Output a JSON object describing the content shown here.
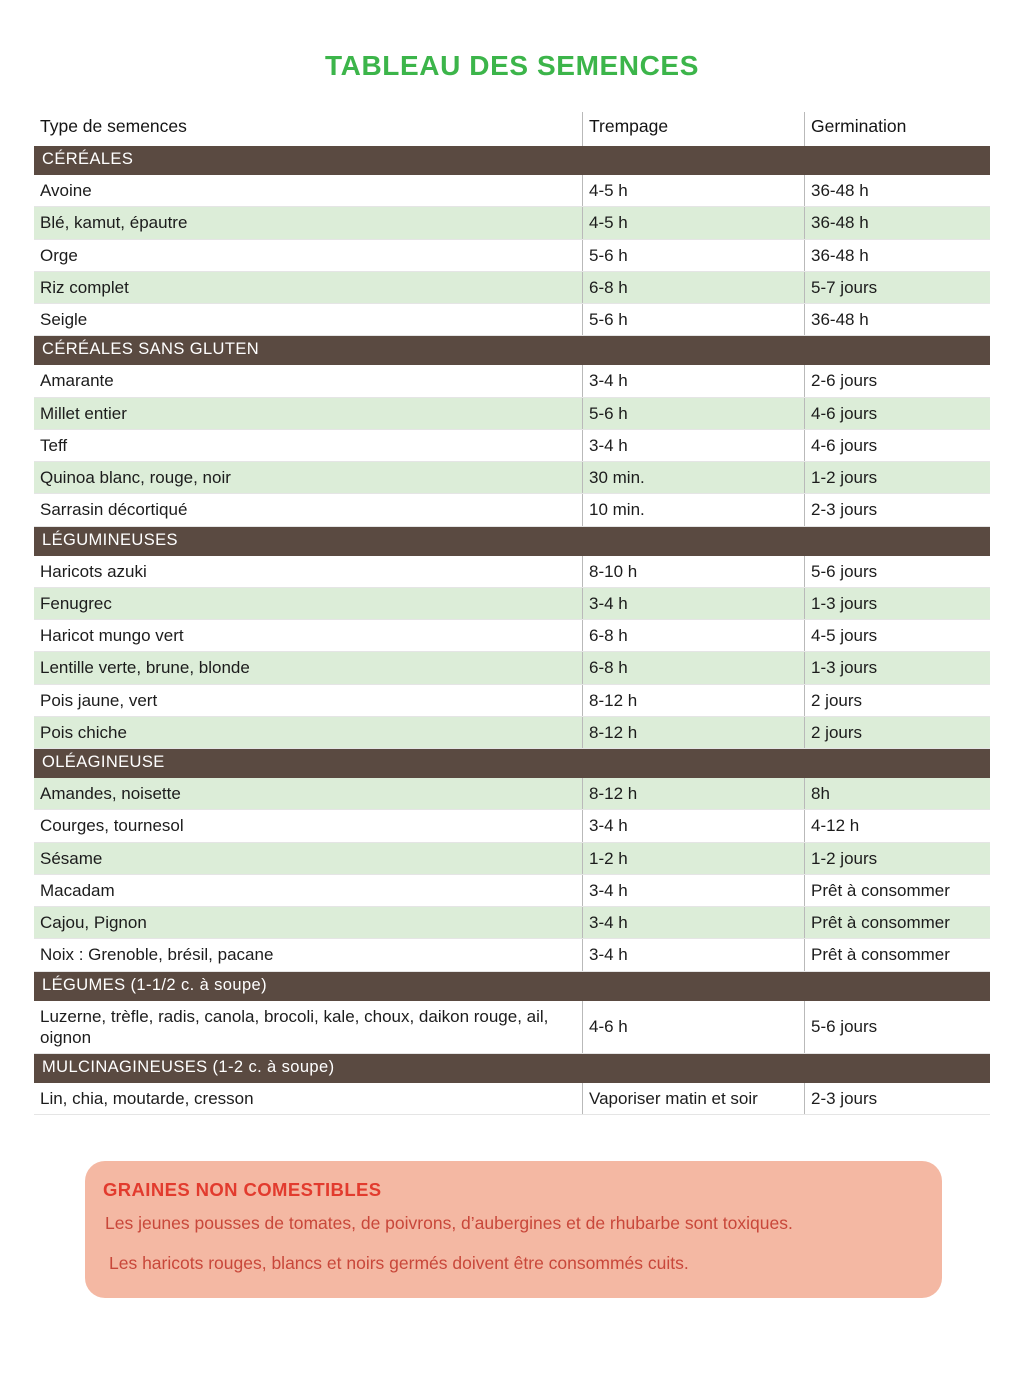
{
  "title": "TABLEAU DES SEMENCES",
  "table": {
    "headers": [
      "Type de semences",
      "Trempage",
      "Germination"
    ],
    "sections": [
      {
        "label": "CÉRÉALES",
        "first_row_green": false,
        "rows": [
          [
            "Avoine",
            "4-5 h",
            "36-48 h"
          ],
          [
            "Blé, kamut, épautre",
            "4-5 h",
            "36-48 h"
          ],
          [
            "Orge",
            "5-6 h",
            "36-48 h"
          ],
          [
            "Riz complet",
            "6-8 h",
            "5-7 jours"
          ],
          [
            "Seigle",
            "5-6 h",
            "36-48 h"
          ]
        ]
      },
      {
        "label": "CÉRÉALES SANS GLUTEN",
        "first_row_green": false,
        "rows": [
          [
            "Amarante",
            "3-4 h",
            "2-6 jours"
          ],
          [
            "Millet entier",
            "5-6 h",
            "4-6 jours"
          ],
          [
            "Teff",
            "3-4 h",
            "4-6 jours"
          ],
          [
            "Quinoa blanc, rouge, noir",
            "30 min.",
            "1-2 jours"
          ],
          [
            "Sarrasin décortiqué",
            "10 min.",
            "2-3 jours"
          ]
        ]
      },
      {
        "label": "LÉGUMINEUSES",
        "first_row_green": false,
        "rows": [
          [
            "Haricots azuki",
            "8-10 h",
            "5-6 jours"
          ],
          [
            "Fenugrec",
            "3-4 h",
            "1-3 jours"
          ],
          [
            "Haricot mungo vert",
            "6-8 h",
            "4-5 jours"
          ],
          [
            "Lentille verte, brune, blonde",
            "6-8 h",
            "1-3 jours"
          ],
          [
            "Pois jaune, vert",
            "8-12 h",
            "2 jours"
          ],
          [
            "Pois chiche",
            "8-12 h",
            "2 jours"
          ]
        ]
      },
      {
        "label": "OLÉAGINEUSE",
        "first_row_green": true,
        "rows": [
          [
            "Amandes, noisette",
            "8-12 h",
            "8h"
          ],
          [
            "Courges, tournesol",
            "3-4 h",
            "4-12 h"
          ],
          [
            "Sésame",
            "1-2 h",
            "1-2 jours"
          ],
          [
            "Macadam",
            "3-4 h",
            "Prêt à consommer"
          ],
          [
            "Cajou, Pignon",
            "3-4 h",
            "Prêt à consommer"
          ],
          [
            "Noix : Grenoble, brésil, pacane",
            "3-4 h",
            "Prêt à consommer"
          ]
        ]
      },
      {
        "label": "LÉGUMES (1-1/2 c. à soupe)",
        "first_row_green": false,
        "rows": [
          [
            "Luzerne, trèfle, radis, canola, brocoli, kale, choux, daikon rouge, ail, oignon",
            "4-6 h",
            "5-6 jours"
          ]
        ]
      },
      {
        "label": "MULCINAGINEUSES (1-2 c. à soupe)",
        "first_row_green": false,
        "rows": [
          [
            "Lin, chia, moutarde, cresson",
            "Vaporiser matin et soir",
            "2-3 jours"
          ]
        ]
      }
    ]
  },
  "warning": {
    "title": "GRAINES NON COMESTIBLES",
    "lines": [
      "Les jeunes pousses de tomates, de poivrons, d’aubergines et de rhubarbe sont toxiques.",
      "Les haricots rouges, blancs et noirs germés doivent être consommés cuits."
    ]
  },
  "colors": {
    "title_green": "#3cb54a",
    "section_brown": "#5a4a41",
    "row_green": "#dcedd8",
    "warning_bg": "#f4b8a3",
    "warning_title": "#e23b2e",
    "warning_text": "#c8473a"
  }
}
